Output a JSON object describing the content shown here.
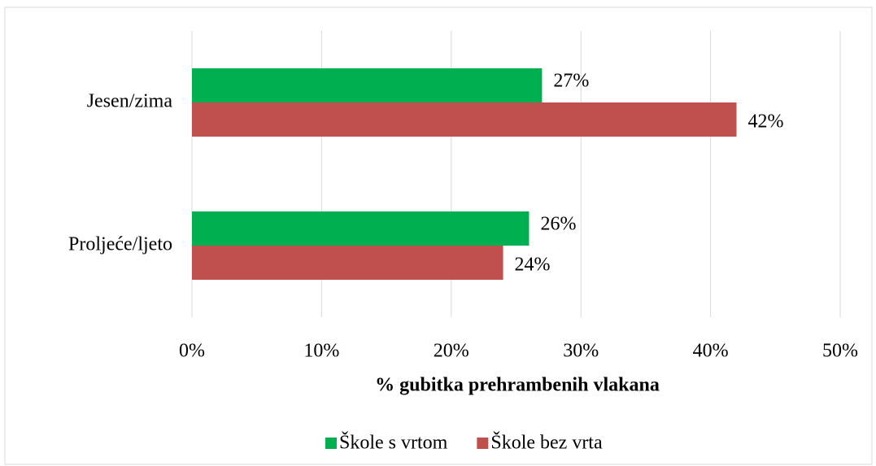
{
  "chart_data": {
    "type": "hbar",
    "xlabel": "% gubitka prehrambenih vlakana",
    "categories": [
      "Jesen/zima",
      "Proljeće/ljeto"
    ],
    "series": [
      {
        "name": "Škole s vrtom",
        "color": "#00b050",
        "values": [
          27,
          26
        ],
        "value_labels": [
          "27%",
          "26%"
        ]
      },
      {
        "name": "Škole bez vrta",
        "color": "#c0504d",
        "values": [
          42,
          24
        ],
        "value_labels": [
          "42%",
          "24%"
        ]
      }
    ],
    "xlim": [
      0,
      50
    ],
    "xticks": [
      {
        "value": 0,
        "label": "0%"
      },
      {
        "value": 10,
        "label": "10%"
      },
      {
        "value": 20,
        "label": "20%"
      },
      {
        "value": 30,
        "label": "30%"
      },
      {
        "value": 40,
        "label": "40%"
      },
      {
        "value": 50,
        "label": "50%"
      }
    ],
    "grid": true,
    "legend": "bottom"
  }
}
